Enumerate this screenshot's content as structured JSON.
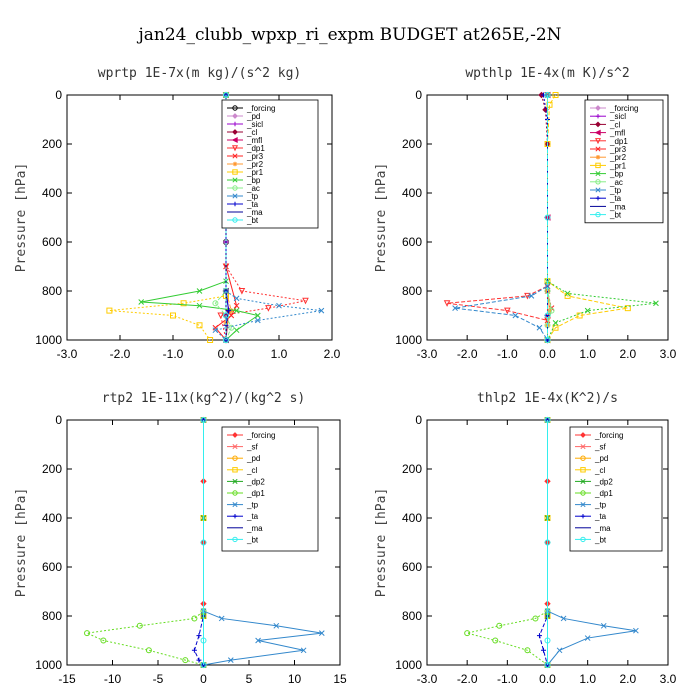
{
  "title": "jan24_clubb_wpxp_ri_expm  BUDGET at265E,-2N",
  "chart_data": [
    {
      "type": "line",
      "title": "wprtp  1E-7x(m kg)/(s^2 kg)",
      "ylabel": "Pressure [hPa]",
      "xlim": [
        -3.0,
        2.0
      ],
      "ylim": [
        1000,
        0
      ],
      "xticks": [
        "-3.0",
        "-2.0",
        "-1.0",
        "0.0",
        "1.0",
        "2.0"
      ],
      "xtick_values": [
        -3,
        -2,
        -1,
        0,
        1,
        2
      ],
      "yticks": [
        "0",
        "200",
        "400",
        "600",
        "800",
        "1000"
      ],
      "ytick_values": [
        0,
        200,
        400,
        600,
        800,
        1000
      ],
      "legend_position": "top-right",
      "series": [
        {
          "name": "_forcing",
          "color": "#000000",
          "marker": "o",
          "x": [
            0,
            0,
            0,
            0,
            0,
            0,
            0
          ],
          "y": [
            0,
            200,
            400,
            600,
            800,
            900,
            1000
          ]
        },
        {
          "name": "_pd",
          "color": "#cc88cc",
          "marker": "d",
          "x": [
            0,
            0,
            0,
            0,
            0
          ],
          "y": [
            0,
            300,
            600,
            900,
            1000
          ]
        },
        {
          "name": "_sicl",
          "color": "#9900cc",
          "marker": "+",
          "x": [
            0,
            0,
            0,
            0,
            0
          ],
          "y": [
            0,
            300,
            600,
            900,
            1000
          ]
        },
        {
          "name": "_cl",
          "color": "#990033",
          "marker": "d",
          "x": [
            0,
            0,
            0,
            0.05,
            0
          ],
          "y": [
            0,
            400,
            800,
            880,
            1000
          ]
        },
        {
          "name": "_mfl",
          "color": "#cc0066",
          "marker": "<",
          "x": [
            0,
            0,
            0,
            0,
            0
          ],
          "y": [
            0,
            400,
            800,
            900,
            1000
          ]
        },
        {
          "name": "_dp1",
          "color": "#ff3333",
          "marker": "v",
          "x": [
            0,
            0,
            0.3,
            1.5,
            0.8,
            -0.1,
            0
          ],
          "y": [
            0,
            700,
            800,
            840,
            870,
            900,
            1000
          ]
        },
        {
          "name": "_pr3",
          "color": "#ff2222",
          "marker": "x",
          "x": [
            0,
            0,
            0.2,
            0.1,
            -0.2,
            0
          ],
          "y": [
            0,
            700,
            860,
            900,
            950,
            1000
          ]
        },
        {
          "name": "_pr2",
          "color": "#ff9933",
          "marker": "*",
          "x": [
            0,
            0,
            0.1,
            0,
            0
          ],
          "y": [
            0,
            800,
            880,
            930,
            1000
          ]
        },
        {
          "name": "_pr1",
          "color": "#ffcc00",
          "marker": "s",
          "x": [
            0,
            0,
            -0.8,
            -2.2,
            -1.0,
            -0.5,
            -0.3
          ],
          "y": [
            0,
            820,
            850,
            880,
            900,
            940,
            1000
          ]
        },
        {
          "name": "_bp",
          "color": "#33cc33",
          "marker": "x",
          "x": [
            0,
            0,
            -0.5,
            -1.6,
            -0.5,
            0.2,
            0.6,
            0.2,
            0
          ],
          "y": [
            0,
            760,
            800,
            845,
            860,
            880,
            900,
            960,
            1000
          ]
        },
        {
          "name": "_ac",
          "color": "#88ee88",
          "marker": "o",
          "x": [
            0,
            0,
            -0.2,
            0,
            0.1,
            0
          ],
          "y": [
            0,
            800,
            850,
            900,
            950,
            1000
          ]
        },
        {
          "name": "_tp",
          "color": "#3388cc",
          "marker": "x",
          "x": [
            0,
            0,
            0.2,
            1.0,
            1.8,
            0.6,
            -0.2,
            0
          ],
          "y": [
            0,
            800,
            830,
            860,
            880,
            920,
            960,
            1000
          ]
        },
        {
          "name": "_ta",
          "color": "#0000cc",
          "marker": "+",
          "x": [
            0,
            0,
            0.05,
            0,
            0
          ],
          "y": [
            0,
            800,
            880,
            940,
            1000
          ]
        },
        {
          "name": "_ma",
          "color": "#000099",
          "marker": "",
          "x": [
            0,
            0,
            0,
            0
          ],
          "y": [
            0,
            500,
            900,
            1000
          ]
        },
        {
          "name": "_bt",
          "color": "#33eeee",
          "marker": "o",
          "x": [
            0,
            0,
            0,
            0
          ],
          "y": [
            0,
            500,
            900,
            1000
          ]
        }
      ]
    },
    {
      "type": "line",
      "title": "wpthlp  1E-4x(m K)/s^2",
      "ylabel": "Pressure [hPa]",
      "xlim": [
        -3.0,
        3.0
      ],
      "ylim": [
        1000,
        0
      ],
      "xticks": [
        "-3.0",
        "-2.0",
        "-1.0",
        "0.0",
        "1.0",
        "2.0",
        "3.0"
      ],
      "xtick_values": [
        -3,
        -2,
        -1,
        0,
        1,
        2,
        3
      ],
      "yticks": [
        "0",
        "200",
        "400",
        "600",
        "800",
        "1000"
      ],
      "ytick_values": [
        0,
        200,
        400,
        600,
        800,
        1000
      ],
      "legend_position": "top-right",
      "series": [
        {
          "name": "_forcing",
          "color": "#cc88cc",
          "marker": "d",
          "x": [
            0,
            0,
            0,
            0
          ],
          "y": [
            0,
            500,
            900,
            1000
          ]
        },
        {
          "name": "_sicl",
          "color": "#9900cc",
          "marker": "+",
          "x": [
            0,
            0,
            0,
            0
          ],
          "y": [
            0,
            500,
            900,
            1000
          ]
        },
        {
          "name": "_cl",
          "color": "#990033",
          "marker": "d",
          "x": [
            -0.15,
            -0.05,
            0,
            0,
            0
          ],
          "y": [
            0,
            60,
            200,
            800,
            1000
          ]
        },
        {
          "name": "_mfl",
          "color": "#cc0066",
          "marker": "<",
          "x": [
            0,
            0,
            0,
            0
          ],
          "y": [
            0,
            500,
            900,
            1000
          ]
        },
        {
          "name": "_dp1",
          "color": "#ff3333",
          "marker": "v",
          "x": [
            0,
            0,
            -0.5,
            -2.5,
            -1.0,
            0,
            0
          ],
          "y": [
            0,
            780,
            820,
            850,
            880,
            920,
            1000
          ]
        },
        {
          "name": "_pr3",
          "color": "#ff2222",
          "marker": "x",
          "x": [
            0,
            0,
            0.1,
            0,
            0
          ],
          "y": [
            0,
            800,
            870,
            920,
            1000
          ]
        },
        {
          "name": "_pr2",
          "color": "#ff9933",
          "marker": "*",
          "x": [
            0,
            0,
            0.05,
            0,
            0
          ],
          "y": [
            0,
            800,
            880,
            940,
            1000
          ]
        },
        {
          "name": "_pr1",
          "color": "#ffcc00",
          "marker": "s",
          "x": [
            0.2,
            0.05,
            0,
            0,
            0.5,
            2.0,
            0.8,
            0.2,
            0
          ],
          "y": [
            0,
            40,
            200,
            760,
            820,
            870,
            900,
            950,
            1000
          ]
        },
        {
          "name": "_bp",
          "color": "#33cc33",
          "marker": "x",
          "x": [
            0,
            0,
            0.5,
            2.7,
            1.0,
            0.2,
            0
          ],
          "y": [
            0,
            760,
            810,
            850,
            880,
            930,
            1000
          ]
        },
        {
          "name": "_ac",
          "color": "#88ee88",
          "marker": "o",
          "x": [
            0,
            0,
            0.1,
            0,
            0
          ],
          "y": [
            0,
            800,
            880,
            940,
            1000
          ]
        },
        {
          "name": "_tp",
          "color": "#3388cc",
          "marker": "x",
          "x": [
            0,
            0,
            -0.4,
            -2.3,
            -0.8,
            -0.2,
            0
          ],
          "y": [
            0,
            780,
            820,
            870,
            900,
            950,
            1000
          ]
        },
        {
          "name": "_ta",
          "color": "#0000cc",
          "marker": "+",
          "x": [
            -0.1,
            0,
            0,
            0
          ],
          "y": [
            0,
            100,
            900,
            1000
          ]
        },
        {
          "name": "_ma",
          "color": "#000099",
          "marker": "",
          "x": [
            0,
            0,
            0,
            0
          ],
          "y": [
            0,
            500,
            900,
            1000
          ]
        },
        {
          "name": "_bt",
          "color": "#33eeee",
          "marker": "o",
          "x": [
            0,
            0,
            0,
            0
          ],
          "y": [
            0,
            500,
            900,
            1000
          ]
        }
      ]
    },
    {
      "type": "line",
      "title": "rtp2  1E-11x(kg^2)/(kg^2 s)",
      "ylabel": "Pressure [hPa]",
      "xlim": [
        -15,
        15
      ],
      "ylim": [
        1000,
        0
      ],
      "xticks": [
        "-15",
        "-10",
        "-5",
        "0",
        "5",
        "10",
        "15"
      ],
      "xtick_values": [
        -15,
        -10,
        -5,
        0,
        5,
        10,
        15
      ],
      "yticks": [
        "0",
        "200",
        "400",
        "600",
        "800",
        "1000"
      ],
      "ytick_values": [
        0,
        200,
        400,
        600,
        800,
        1000
      ],
      "legend_position": "top-right",
      "series": [
        {
          "name": "_forcing",
          "color": "#ff3333",
          "marker": "d",
          "x": [
            0,
            0,
            0,
            0,
            0
          ],
          "y": [
            0,
            250,
            500,
            750,
            1000
          ]
        },
        {
          "name": "_sf",
          "color": "#ff6666",
          "marker": "x",
          "x": [
            0,
            0,
            0,
            0
          ],
          "y": [
            0,
            400,
            800,
            1000
          ]
        },
        {
          "name": "_pd",
          "color": "#ffaa00",
          "marker": "o",
          "x": [
            0,
            0,
            0,
            0
          ],
          "y": [
            0,
            400,
            800,
            1000
          ]
        },
        {
          "name": "_cl",
          "color": "#ffcc00",
          "marker": "s",
          "x": [
            0,
            0,
            0,
            0
          ],
          "y": [
            0,
            400,
            800,
            1000
          ]
        },
        {
          "name": "_dp2",
          "color": "#22aa22",
          "marker": "x",
          "x": [
            0,
            0,
            0,
            0
          ],
          "y": [
            0,
            400,
            800,
            1000
          ]
        },
        {
          "name": "_dp1",
          "color": "#66dd22",
          "marker": "o",
          "x": [
            0,
            0,
            -1.0,
            -7.0,
            -12.8,
            -11.0,
            -6.0,
            -2.0,
            0
          ],
          "y": [
            0,
            780,
            810,
            840,
            870,
            900,
            940,
            980,
            1000
          ]
        },
        {
          "name": "_tp",
          "color": "#3388cc",
          "marker": "x",
          "x": [
            0,
            0,
            2.0,
            8.0,
            13.0,
            6.0,
            11.0,
            3.0,
            0
          ],
          "y": [
            0,
            780,
            810,
            840,
            870,
            900,
            940,
            980,
            1000
          ]
        },
        {
          "name": "_ta",
          "color": "#0000cc",
          "marker": "+",
          "x": [
            0,
            0,
            -0.5,
            -1.0,
            -0.5,
            0
          ],
          "y": [
            0,
            800,
            880,
            940,
            980,
            1000
          ]
        },
        {
          "name": "_ma",
          "color": "#000099",
          "marker": "",
          "x": [
            0,
            0,
            0,
            0
          ],
          "y": [
            0,
            500,
            900,
            1000
          ]
        },
        {
          "name": "_bt",
          "color": "#33eeee",
          "marker": "o",
          "x": [
            0,
            0,
            0,
            0
          ],
          "y": [
            0,
            500,
            900,
            1000
          ]
        }
      ]
    },
    {
      "type": "line",
      "title": "thlp2  1E-4x(K^2)/s",
      "ylabel": "Pressure [hPa]",
      "xlim": [
        -3.0,
        3.0
      ],
      "ylim": [
        1000,
        0
      ],
      "xticks": [
        "-3.0",
        "-2.0",
        "-1.0",
        "0.0",
        "1.0",
        "2.0",
        "3.0"
      ],
      "xtick_values": [
        -3,
        -2,
        -1,
        0,
        1,
        2,
        3
      ],
      "yticks": [
        "0",
        "200",
        "400",
        "600",
        "800",
        "1000"
      ],
      "ytick_values": [
        0,
        200,
        400,
        600,
        800,
        1000
      ],
      "legend_position": "top-right",
      "series": [
        {
          "name": "_forcing",
          "color": "#ff3333",
          "marker": "d",
          "x": [
            0,
            0,
            0,
            0,
            0
          ],
          "y": [
            0,
            250,
            500,
            750,
            1000
          ]
        },
        {
          "name": "_sf",
          "color": "#ff6666",
          "marker": "x",
          "x": [
            0,
            0,
            0,
            0
          ],
          "y": [
            0,
            400,
            800,
            1000
          ]
        },
        {
          "name": "_pd",
          "color": "#ffaa00",
          "marker": "o",
          "x": [
            0,
            0,
            0,
            0
          ],
          "y": [
            0,
            400,
            800,
            1000
          ]
        },
        {
          "name": "_cl",
          "color": "#ffcc00",
          "marker": "s",
          "x": [
            0,
            0,
            0,
            0
          ],
          "y": [
            0,
            400,
            800,
            1000
          ]
        },
        {
          "name": "_dp2",
          "color": "#22aa22",
          "marker": "x",
          "x": [
            0,
            0,
            0,
            0
          ],
          "y": [
            0,
            400,
            800,
            1000
          ]
        },
        {
          "name": "_dp1",
          "color": "#66dd22",
          "marker": "o",
          "x": [
            0,
            0,
            -0.3,
            -1.2,
            -2.0,
            -1.3,
            -0.5,
            0
          ],
          "y": [
            0,
            780,
            810,
            840,
            870,
            900,
            940,
            1000
          ]
        },
        {
          "name": "_tp",
          "color": "#3388cc",
          "marker": "x",
          "x": [
            0,
            0,
            0.4,
            1.4,
            2.2,
            1.0,
            0.3,
            0
          ],
          "y": [
            0,
            780,
            810,
            840,
            860,
            890,
            940,
            1000
          ]
        },
        {
          "name": "_ta",
          "color": "#0000cc",
          "marker": "+",
          "x": [
            0,
            0,
            -0.2,
            -0.1,
            0
          ],
          "y": [
            0,
            800,
            880,
            940,
            1000
          ]
        },
        {
          "name": "_ma",
          "color": "#000099",
          "marker": "",
          "x": [
            0,
            0,
            0,
            0
          ],
          "y": [
            0,
            500,
            900,
            1000
          ]
        },
        {
          "name": "_bt",
          "color": "#33eeee",
          "marker": "o",
          "x": [
            0,
            0,
            0,
            0
          ],
          "y": [
            0,
            500,
            900,
            1000
          ]
        }
      ]
    }
  ]
}
